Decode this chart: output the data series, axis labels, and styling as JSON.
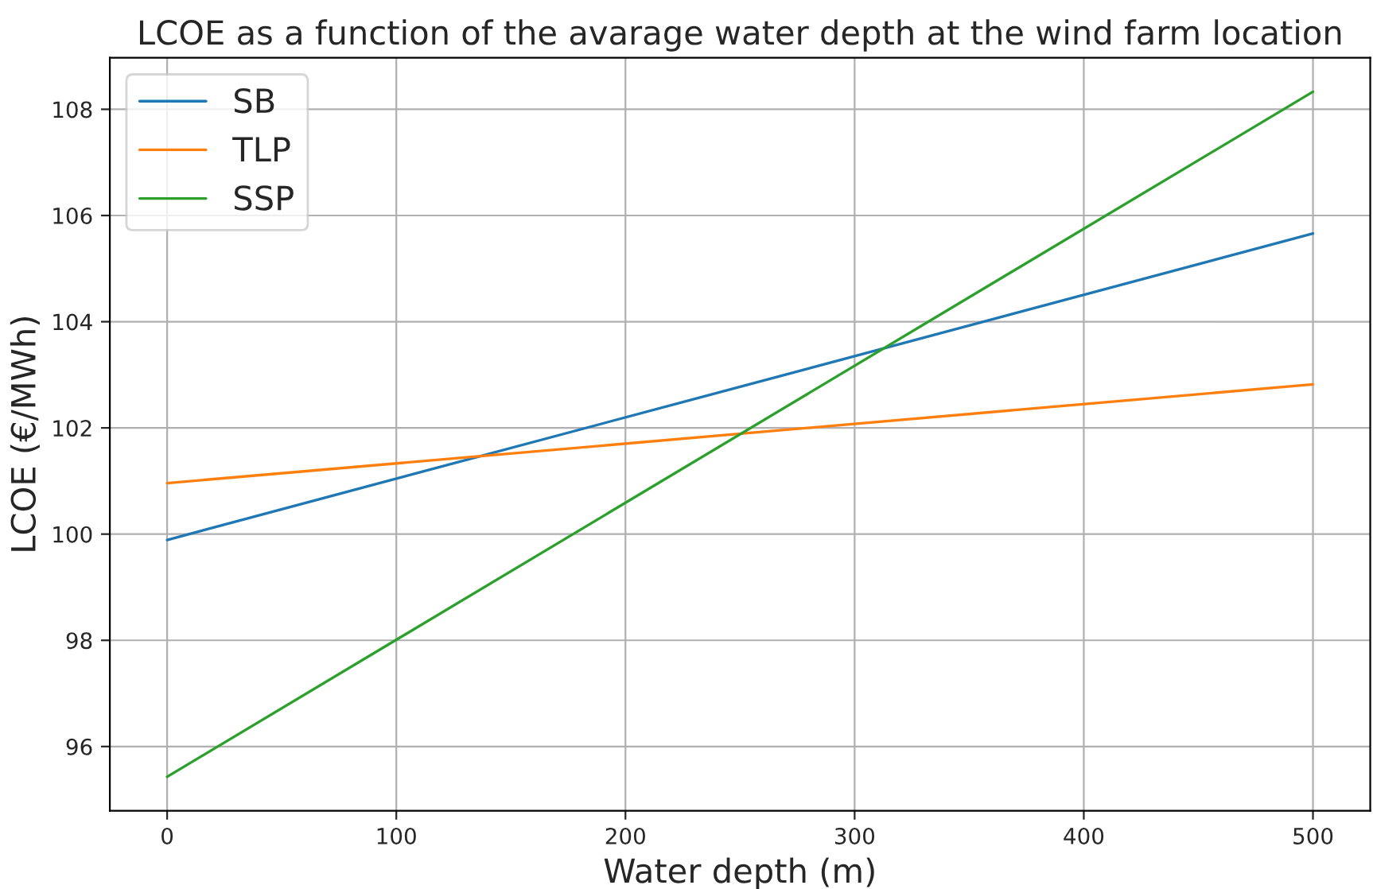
{
  "chart_data": {
    "type": "line",
    "title": "LCOE as a function of the avarage water depth at the wind farm location",
    "xlabel": "Water depth (m)",
    "ylabel": "LCOE (€/MWh)",
    "x": [
      0,
      500
    ],
    "series": [
      {
        "name": "SB",
        "color": "#1f77b4",
        "values": [
          99.89,
          105.66
        ]
      },
      {
        "name": "TLP",
        "color": "#ff7f0e",
        "values": [
          100.96,
          102.82
        ]
      },
      {
        "name": "SSP",
        "color": "#2ca02c",
        "values": [
          95.43,
          108.33
        ]
      }
    ],
    "xlim": [
      -25,
      525
    ],
    "xticks": [
      0,
      100,
      200,
      300,
      400,
      500
    ],
    "ylim": [
      94.79,
      108.97
    ],
    "yticks": [
      96,
      98,
      100,
      102,
      104,
      106,
      108
    ],
    "grid": true,
    "legend": "top left",
    "marker": "none",
    "line_style": "solid"
  }
}
